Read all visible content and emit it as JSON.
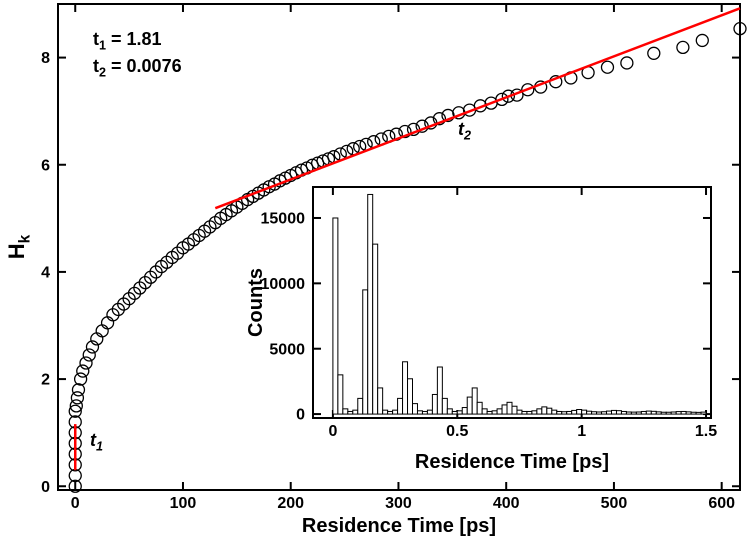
{
  "chart_data": [
    {
      "type": "scatter",
      "xlabel": "Residence Time [ps]",
      "ylabel": {
        "text": "H",
        "sub": "k"
      },
      "xlim": [
        -16,
        617
      ],
      "ylim": [
        -0.07,
        9.0
      ],
      "xticks": [
        0,
        100,
        200,
        300,
        400,
        500,
        600
      ],
      "yticks": [
        0,
        2,
        4,
        6,
        8
      ],
      "marker_color": "#000000",
      "x": [
        0,
        0,
        0,
        0,
        0,
        0,
        0,
        0,
        1,
        2,
        3,
        5,
        7,
        10,
        13,
        16,
        20,
        25,
        30,
        35,
        40,
        45,
        50,
        55,
        60,
        65,
        70,
        75,
        80,
        85,
        90,
        95,
        100,
        105,
        110,
        115,
        120,
        125,
        130,
        135,
        140,
        145,
        150,
        155,
        160,
        165,
        170,
        175,
        180,
        185,
        190,
        195,
        200,
        205,
        210,
        215,
        220,
        225,
        230,
        235,
        240,
        246,
        252,
        258,
        264,
        270,
        277,
        284,
        291,
        298,
        306,
        314,
        322,
        330,
        338,
        346,
        356,
        366,
        376,
        386,
        396,
        402,
        410,
        420,
        432,
        446,
        460,
        476,
        494,
        512,
        537,
        564,
        582,
        617
      ],
      "y": [
        0,
        0.2,
        0.4,
        0.6,
        0.8,
        1.0,
        1.2,
        1.4,
        1.5,
        1.65,
        1.8,
        2.0,
        2.15,
        2.3,
        2.45,
        2.6,
        2.75,
        2.9,
        3.05,
        3.2,
        3.3,
        3.4,
        3.5,
        3.6,
        3.7,
        3.8,
        3.9,
        4.0,
        4.1,
        4.18,
        4.27,
        4.35,
        4.45,
        4.52,
        4.6,
        4.68,
        4.76,
        4.84,
        4.92,
        5.0,
        5.07,
        5.14,
        5.21,
        5.28,
        5.35,
        5.41,
        5.47,
        5.53,
        5.59,
        5.64,
        5.7,
        5.75,
        5.8,
        5.85,
        5.9,
        5.94,
        5.99,
        6.03,
        6.07,
        6.11,
        6.15,
        6.2,
        6.25,
        6.3,
        6.34,
        6.38,
        6.43,
        6.48,
        6.53,
        6.57,
        6.62,
        6.66,
        6.72,
        6.78,
        6.86,
        6.92,
        6.97,
        7.02,
        7.1,
        7.15,
        7.22,
        7.28,
        7.3,
        7.4,
        7.45,
        7.55,
        7.62,
        7.72,
        7.82,
        7.9,
        8.08,
        8.19,
        8.32,
        8.54
      ],
      "fit_color": "#ff0000",
      "fit_lines": [
        {
          "label": {
            "text": "t",
            "sub": "1"
          },
          "x": [
            0,
            0
          ],
          "y": [
            0.3,
            1.16
          ]
        },
        {
          "label": {
            "text": "t",
            "sub": "2"
          },
          "x": [
            130,
            617
          ],
          "y": [
            5.19,
            8.92
          ]
        }
      ],
      "annotations": [
        {
          "text": "t",
          "sub": "1",
          "after": " = 1.81"
        },
        {
          "text": "t",
          "sub": "2",
          "after": " = 0.0076"
        }
      ]
    },
    {
      "type": "histogram",
      "xlabel": "Residence Time [ps]",
      "ylabel": "Counts",
      "xlim": [
        -0.08,
        1.52
      ],
      "ylim": [
        -300,
        17370
      ],
      "xticks": [
        0,
        0.5,
        1,
        1.5
      ],
      "yticks": [
        0,
        5000,
        10000,
        15000
      ],
      "color": "#000000",
      "bins": [
        0,
        0.02,
        0.04,
        0.06,
        0.08,
        0.1,
        0.12,
        0.14,
        0.16,
        0.18,
        0.2,
        0.22,
        0.24,
        0.26,
        0.28,
        0.3,
        0.32,
        0.34,
        0.36,
        0.38,
        0.4,
        0.42,
        0.44,
        0.46,
        0.48,
        0.5,
        0.52,
        0.54,
        0.56,
        0.58,
        0.6,
        0.62,
        0.64,
        0.66,
        0.68,
        0.7,
        0.72,
        0.74,
        0.76,
        0.78,
        0.8,
        0.82,
        0.84,
        0.86,
        0.88,
        0.9,
        0.92,
        0.94,
        0.96,
        0.98,
        1.0,
        1.02,
        1.04,
        1.06,
        1.08,
        1.1,
        1.12,
        1.14,
        1.16,
        1.18,
        1.2,
        1.22,
        1.24,
        1.26,
        1.28,
        1.3,
        1.32,
        1.34,
        1.36,
        1.38,
        1.4,
        1.42,
        1.44,
        1.46,
        1.48,
        1.5
      ],
      "counts": [
        15000,
        3000,
        400,
        200,
        300,
        1200,
        9500,
        16800,
        13000,
        2000,
        300,
        200,
        300,
        1200,
        4000,
        2700,
        800,
        250,
        200,
        300,
        1500,
        3600,
        1200,
        400,
        200,
        250,
        500,
        1300,
        2000,
        900,
        400,
        200,
        250,
        400,
        700,
        900,
        600,
        300,
        200,
        200,
        250,
        400,
        550,
        450,
        300,
        200,
        180,
        200,
        280,
        350,
        300,
        220,
        180,
        160,
        180,
        230,
        280,
        260,
        200,
        160,
        150,
        160,
        200,
        230,
        210,
        170,
        140,
        140,
        160,
        190,
        200,
        170,
        140,
        130,
        150
      ]
    }
  ]
}
